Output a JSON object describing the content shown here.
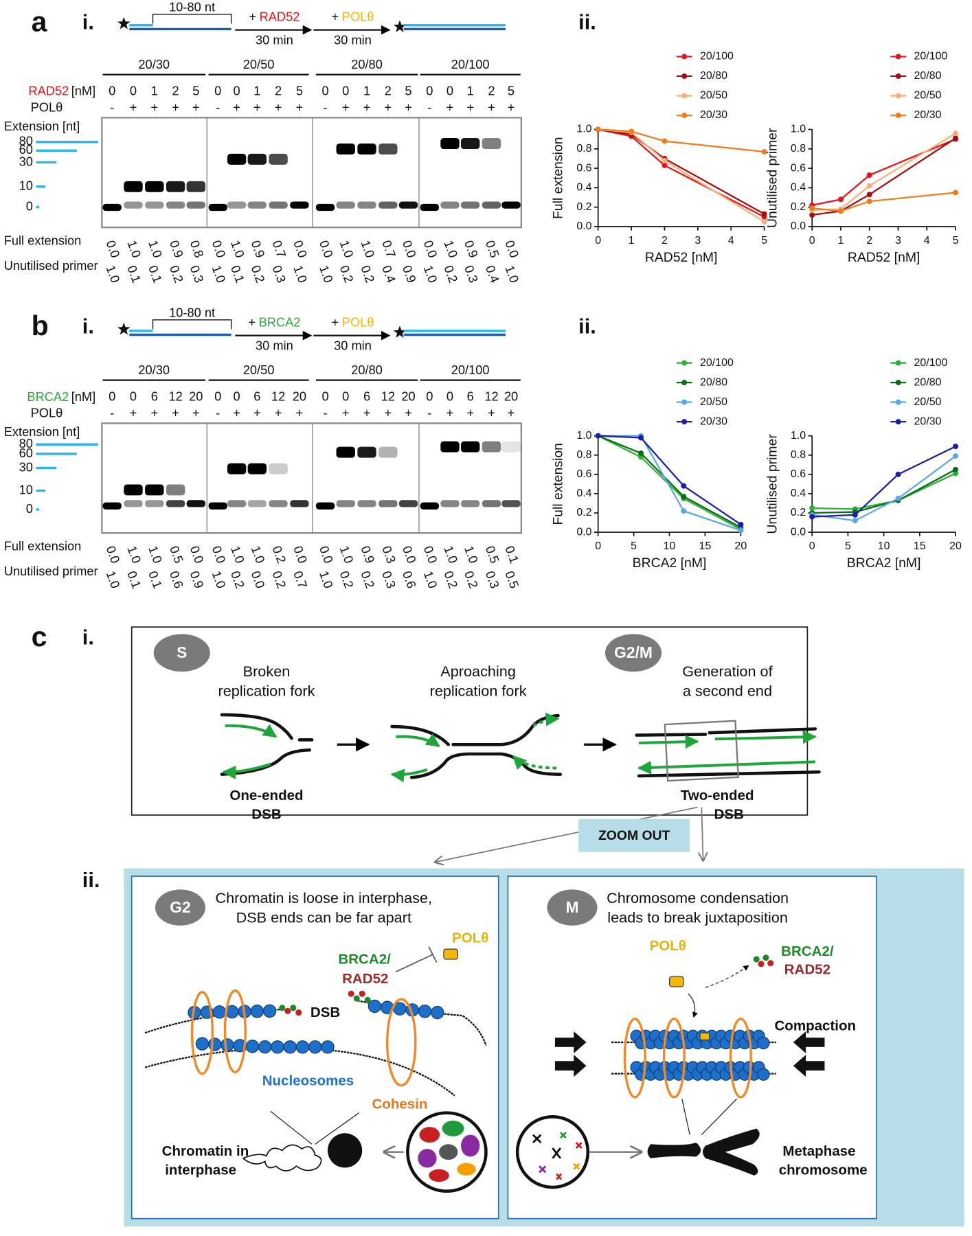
{
  "panel_a": {
    "label": "a",
    "part_i": "i.",
    "part_ii": "ii.",
    "scheme": {
      "gap": "10-80 nt",
      "step1_plus": "+",
      "step1_protein": "RAD52",
      "step1_color": "#e8141c",
      "step1_time": "30 min",
      "step2_plus": "+",
      "step2_protein": "POLθ",
      "step2_color": "#f5b800",
      "step2_time": "30 min"
    },
    "protein_label": "RAD52",
    "protein_color": "#e8141c",
    "unit": "[nM]",
    "pol_label": "POLθ",
    "pol_color": "#f5b800",
    "extension_label": "Extension [nt]",
    "markers": [
      {
        "label": "80",
        "color": "#e8141c"
      },
      {
        "label": "60",
        "color": "#b01818"
      },
      {
        "label": "30",
        "color": "#f7c39a"
      },
      {
        "label": "10",
        "color": "#f07d1b"
      },
      {
        "label": "0",
        "color": "#000000"
      }
    ],
    "full_extension_label": "Full extension",
    "unutilised_label": "Unutilised primer",
    "groups": [
      {
        "name": "20/30",
        "color": "#f07d1b",
        "concentrations": [
          0,
          0,
          1,
          2,
          5
        ],
        "polymerase": [
          "-",
          "+",
          "+",
          "+",
          "+"
        ],
        "full_extension": [
          "0.0",
          "1.0",
          "1.0",
          "0.9",
          "0.8"
        ],
        "unutilised_primer": [
          "1.0",
          "0.1",
          "0.1",
          "0.2",
          "0.3"
        ]
      },
      {
        "name": "20/50",
        "color": "#f7c39a",
        "concentrations": [
          0,
          0,
          1,
          2,
          5
        ],
        "polymerase": [
          "-",
          "+",
          "+",
          "+",
          "+"
        ],
        "full_extension": [
          "0.0",
          "1.0",
          "0.9",
          "0.7",
          "0.0"
        ],
        "unutilised_primer": [
          "1.0",
          "0.1",
          "0.2",
          "0.3",
          "1.0"
        ]
      },
      {
        "name": "20/80",
        "color": "#b01818",
        "concentrations": [
          0,
          0,
          1,
          2,
          5
        ],
        "polymerase": [
          "-",
          "+",
          "+",
          "+",
          "+"
        ],
        "full_extension": [
          "0.0",
          "1.0",
          "1.0",
          "0.7",
          "0.0"
        ],
        "unutilised_primer": [
          "1.0",
          "0.2",
          "0.2",
          "0.4",
          "0.9"
        ]
      },
      {
        "name": "20/100",
        "color": "#e8141c",
        "concentrations": [
          0,
          0,
          1,
          2,
          5
        ],
        "polymerase": [
          "-",
          "+",
          "+",
          "+",
          "+"
        ],
        "full_extension": [
          "0.0",
          "1.0",
          "0.9",
          "0.5",
          "0.0"
        ],
        "unutilised_primer": [
          "1.0",
          "0.2",
          "0.3",
          "0.4",
          "1.0"
        ]
      }
    ]
  },
  "panel_b": {
    "label": "b",
    "part_i": "i.",
    "part_ii": "ii.",
    "scheme": {
      "gap": "10-80 nt",
      "step1_plus": "+",
      "step1_protein": "BRCA2",
      "step1_color": "#2aa836",
      "step1_time": "30 min",
      "step2_plus": "+",
      "step2_protein": "POLθ",
      "step2_color": "#f5b800",
      "step2_time": "30 min"
    },
    "protein_label": "BRCA2",
    "protein_color": "#2aa836",
    "unit": "[nM]",
    "pol_label": "POLθ",
    "pol_color": "#f5b800",
    "extension_label": "Extension [nt]",
    "markers": [
      {
        "label": "80",
        "color": "#2dbd3a"
      },
      {
        "label": "60",
        "color": "#107a18"
      },
      {
        "label": "30",
        "color": "#5ab4e8"
      },
      {
        "label": "10",
        "color": "#2a2aa8"
      },
      {
        "label": "0",
        "color": "#000000"
      }
    ],
    "full_extension_label": "Full extension",
    "unutilised_label": "Unutilised primer",
    "groups": [
      {
        "name": "20/30",
        "color": "#2a2aa8",
        "concentrations": [
          0,
          0,
          6,
          12,
          20
        ],
        "polymerase": [
          "-",
          "+",
          "+",
          "+",
          "+"
        ],
        "full_extension": [
          "0.0",
          "1.0",
          "1.0",
          "0.5",
          "0.0"
        ],
        "unutilised_primer": [
          "1.0",
          "0.1",
          "0.1",
          "0.6",
          "0.9"
        ]
      },
      {
        "name": "20/50",
        "color": "#5ab4e8",
        "concentrations": [
          0,
          0,
          6,
          12,
          20
        ],
        "polymerase": [
          "-",
          "+",
          "+",
          "+",
          "+"
        ],
        "full_extension": [
          "0.0",
          "1.0",
          "1.0",
          "0.2",
          "0.0"
        ],
        "unutilised_primer": [
          "1.0",
          "0.2",
          "0.0",
          "0.2",
          "0.7"
        ]
      },
      {
        "name": "20/80",
        "color": "#107a18",
        "concentrations": [
          0,
          0,
          6,
          12,
          20
        ],
        "polymerase": [
          "-",
          "+",
          "+",
          "+",
          "+"
        ],
        "full_extension": [
          "0.0",
          "1.0",
          "0.9",
          "0.3",
          "0.0"
        ],
        "unutilised_primer": [
          "1.0",
          "0.2",
          "0.2",
          "0.3",
          "0.6"
        ]
      },
      {
        "name": "20/100",
        "color": "#2dbd3a",
        "concentrations": [
          0,
          0,
          6,
          12,
          20
        ],
        "polymerase": [
          "-",
          "+",
          "+",
          "+",
          "+"
        ],
        "full_extension": [
          "0.0",
          "1.0",
          "1.0",
          "0.5",
          "0.1"
        ],
        "unutilised_primer": [
          "1.0",
          "0.2",
          "0.2",
          "0.3",
          "0.5"
        ]
      }
    ]
  },
  "chart_data": [
    {
      "type": "line",
      "xlabel": "RAD52 [nM]",
      "ylabel": "Full extension",
      "legend": "top-right",
      "x": [
        0,
        1,
        2,
        5
      ],
      "xlim": [
        0,
        5
      ],
      "xticks": [
        0,
        1,
        2,
        3,
        4,
        5
      ],
      "ylim": [
        0,
        1
      ],
      "yticks": [
        {
          "value": 0,
          "label": "0.0"
        },
        {
          "value": 0.2,
          "label": "0.2"
        },
        {
          "value": 0.4,
          "label": "0.4"
        },
        {
          "value": 0.6,
          "label": "0.6"
        },
        {
          "value": 0.8,
          "label": "0.8"
        },
        {
          "value": 1,
          "label": "1.0"
        }
      ],
      "series": [
        {
          "name": "20/100",
          "color": "#e8141c",
          "values": [
            1.0,
            0.93,
            0.63,
            0.1
          ]
        },
        {
          "name": "20/80",
          "color": "#a01010",
          "values": [
            1.0,
            0.95,
            0.7,
            0.13
          ]
        },
        {
          "name": "20/50",
          "color": "#f7b07a",
          "values": [
            1.0,
            0.97,
            0.68,
            0.05
          ]
        },
        {
          "name": "20/30",
          "color": "#f07d1b",
          "values": [
            1.0,
            0.98,
            0.88,
            0.77
          ]
        }
      ]
    },
    {
      "type": "line",
      "xlabel": "RAD52 [nM]",
      "ylabel": "Unutilised primer",
      "legend": "top-right",
      "x": [
        0,
        1,
        2,
        5
      ],
      "xlim": [
        0,
        5
      ],
      "xticks": [
        0,
        1,
        2,
        3,
        4,
        5
      ],
      "ylim": [
        0,
        1
      ],
      "yticks": [
        {
          "value": 0,
          "label": "0.0"
        },
        {
          "value": 0.2,
          "label": "0.2"
        },
        {
          "value": 0.4,
          "label": "0.4"
        },
        {
          "value": 0.6,
          "label": "0.6"
        },
        {
          "value": 0.8,
          "label": "0.8"
        },
        {
          "value": 1,
          "label": "1.0"
        }
      ],
      "series": [
        {
          "name": "20/100",
          "color": "#e8141c",
          "values": [
            0.22,
            0.28,
            0.53,
            0.9
          ]
        },
        {
          "name": "20/80",
          "color": "#a01010",
          "values": [
            0.12,
            0.16,
            0.33,
            0.91
          ]
        },
        {
          "name": "20/50",
          "color": "#f7b07a",
          "values": [
            0.17,
            0.18,
            0.42,
            0.96
          ]
        },
        {
          "name": "20/30",
          "color": "#f07d1b",
          "values": [
            0.19,
            0.16,
            0.26,
            0.35
          ]
        }
      ]
    },
    {
      "type": "line",
      "xlabel": "BRCA2 [nM]",
      "ylabel": "Full extension",
      "legend": "top-right",
      "x": [
        0,
        6,
        12,
        20
      ],
      "xlim": [
        0,
        20
      ],
      "xticks": [
        0,
        5,
        10,
        15,
        20
      ],
      "ylim": [
        0,
        1
      ],
      "yticks": [
        {
          "value": 0,
          "label": "0.0"
        },
        {
          "value": 0.2,
          "label": "0.2"
        },
        {
          "value": 0.4,
          "label": "0.4"
        },
        {
          "value": 0.6,
          "label": "0.6"
        },
        {
          "value": 0.8,
          "label": "0.8"
        },
        {
          "value": 1,
          "label": "1.0"
        }
      ],
      "series": [
        {
          "name": "20/100",
          "color": "#27b434",
          "values": [
            1.0,
            0.78,
            0.35,
            0.03
          ]
        },
        {
          "name": "20/80",
          "color": "#0c6b14",
          "values": [
            1.0,
            0.82,
            0.37,
            0.05
          ]
        },
        {
          "name": "20/50",
          "color": "#5aa9e6",
          "values": [
            1.0,
            1.0,
            0.22,
            0.02
          ]
        },
        {
          "name": "20/30",
          "color": "#1b1fa5",
          "values": [
            1.0,
            0.98,
            0.48,
            0.08
          ]
        }
      ]
    },
    {
      "type": "line",
      "xlabel": "BRCA2 [nM]",
      "ylabel": "Unutilised primer",
      "legend": "top-right",
      "x": [
        0,
        6,
        12,
        20
      ],
      "xlim": [
        0,
        20
      ],
      "xticks": [
        0,
        5,
        10,
        15,
        20
      ],
      "ylim": [
        0,
        1
      ],
      "yticks": [
        {
          "value": 0,
          "label": "0.0"
        },
        {
          "value": 0.2,
          "label": "0.2"
        },
        {
          "value": 0.4,
          "label": "0.4"
        },
        {
          "value": 0.6,
          "label": "0.6"
        },
        {
          "value": 0.8,
          "label": "0.8"
        },
        {
          "value": 1,
          "label": "1.0"
        }
      ],
      "series": [
        {
          "name": "20/100",
          "color": "#27b434",
          "values": [
            0.25,
            0.24,
            0.33,
            0.61
          ]
        },
        {
          "name": "20/80",
          "color": "#0c6b14",
          "values": [
            0.2,
            0.21,
            0.33,
            0.65
          ]
        },
        {
          "name": "20/50",
          "color": "#5aa9e6",
          "values": [
            0.18,
            0.12,
            0.35,
            0.79
          ]
        },
        {
          "name": "20/30",
          "color": "#1b1fa5",
          "values": [
            0.16,
            0.18,
            0.6,
            0.89
          ]
        }
      ]
    }
  ],
  "panel_c": {
    "label": "c",
    "part_i": "i.",
    "part_ii": "ii.",
    "phase_s": "S",
    "phase_g2m": "G2/M",
    "broken_fork": [
      "Broken",
      "replication fork"
    ],
    "approaching_fork": [
      "Aproaching",
      "replication fork"
    ],
    "second_end": [
      "Generation of",
      "a second end"
    ],
    "one_ended": [
      "One-ended",
      "DSB"
    ],
    "two_ended": [
      "Two-ended",
      "DSB"
    ],
    "zoom_out": "ZOOM OUT",
    "g2": {
      "phase": "G2",
      "title": [
        "Chromatin is loose in interphase,",
        "DSB ends can be far apart"
      ],
      "pol": "POLθ",
      "brca2": "BRCA2/",
      "rad52": "RAD52",
      "dsb": "DSB",
      "nucleosomes": "Nucleosomes",
      "cohesin": "Cohesin",
      "caption": [
        "Chromatin in",
        "interphase"
      ]
    },
    "m": {
      "phase": "M",
      "title": [
        "Chromosome condensation",
        "leads to break juxtaposition"
      ],
      "pol": "POLθ",
      "brca2": "BRCA2/",
      "rad52": "RAD52",
      "compaction": "Compaction",
      "caption": [
        "Metaphase",
        "chromosome"
      ]
    }
  }
}
